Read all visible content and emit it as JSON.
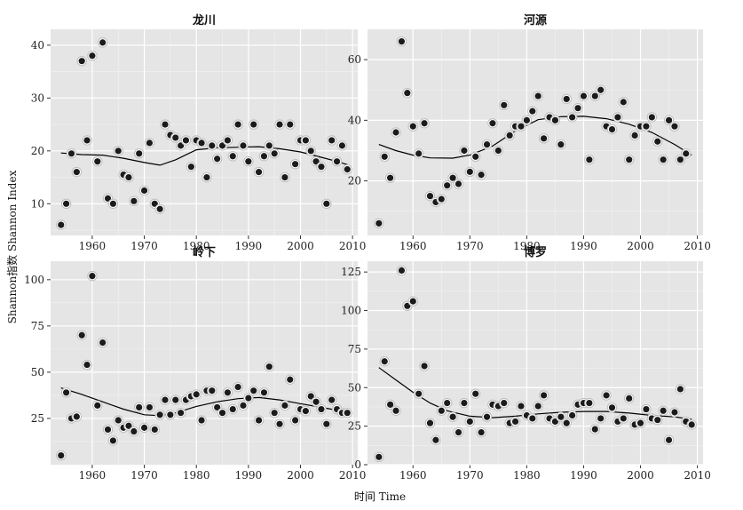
{
  "chart_data": {
    "type": "scatter",
    "xlabel": "时间 Time",
    "ylabel": "Shannon指数 Shannon Index",
    "xlim": [
      1952,
      2011
    ],
    "x_ticks": [
      1960,
      1970,
      1980,
      1990,
      2000,
      2010
    ],
    "grid": true,
    "panels": [
      {
        "name": "龙川",
        "ylim": [
          4,
          43
        ],
        "y_ticks": [
          10,
          20,
          30,
          40
        ],
        "points": [
          [
            1954,
            6
          ],
          [
            1955,
            10
          ],
          [
            1956,
            19.5
          ],
          [
            1957,
            16
          ],
          [
            1958,
            37
          ],
          [
            1959,
            22
          ],
          [
            1960,
            38
          ],
          [
            1961,
            18
          ],
          [
            1962,
            40.5
          ],
          [
            1963,
            11
          ],
          [
            1964,
            10
          ],
          [
            1965,
            20
          ],
          [
            1966,
            15.5
          ],
          [
            1967,
            15
          ],
          [
            1968,
            10.5
          ],
          [
            1969,
            19.5
          ],
          [
            1970,
            12.5
          ],
          [
            1971,
            21.5
          ],
          [
            1972,
            10
          ],
          [
            1973,
            9
          ],
          [
            1974,
            25
          ],
          [
            1975,
            23
          ],
          [
            1976,
            22.5
          ],
          [
            1977,
            21
          ],
          [
            1978,
            22
          ],
          [
            1979,
            17
          ],
          [
            1980,
            22
          ],
          [
            1981,
            21.5
          ],
          [
            1982,
            15
          ],
          [
            1983,
            21
          ],
          [
            1984,
            18.5
          ],
          [
            1985,
            21
          ],
          [
            1986,
            22
          ],
          [
            1987,
            19
          ],
          [
            1988,
            25
          ],
          [
            1989,
            21
          ],
          [
            1990,
            18
          ],
          [
            1991,
            25
          ],
          [
            1992,
            16
          ],
          [
            1993,
            19
          ],
          [
            1994,
            21
          ],
          [
            1995,
            19.5
          ],
          [
            1996,
            25
          ],
          [
            1997,
            15
          ],
          [
            1998,
            25
          ],
          [
            1999,
            17.5
          ],
          [
            2000,
            22
          ],
          [
            2001,
            22
          ],
          [
            2002,
            20
          ],
          [
            2003,
            18
          ],
          [
            2004,
            17
          ],
          [
            2005,
            10
          ],
          [
            2006,
            22
          ],
          [
            2007,
            18
          ],
          [
            2008,
            21
          ],
          [
            2009,
            16.5
          ]
        ],
        "smooth": [
          [
            1954,
            19.6
          ],
          [
            1958,
            19.3
          ],
          [
            1962,
            19.2
          ],
          [
            1966,
            18.6
          ],
          [
            1970,
            17.8
          ],
          [
            1973,
            17.3
          ],
          [
            1976,
            18.3
          ],
          [
            1980,
            20.2
          ],
          [
            1984,
            20.6
          ],
          [
            1988,
            20.7
          ],
          [
            1992,
            20.8
          ],
          [
            1996,
            20.4
          ],
          [
            2000,
            19.8
          ],
          [
            2004,
            18.8
          ],
          [
            2007,
            18.0
          ],
          [
            2009,
            17.4
          ]
        ]
      },
      {
        "name": "河源",
        "ylim": [
          2,
          70
        ],
        "y_ticks": [
          20,
          40,
          60
        ],
        "points": [
          [
            1954,
            6
          ],
          [
            1955,
            28
          ],
          [
            1956,
            21
          ],
          [
            1957,
            36
          ],
          [
            1958,
            66
          ],
          [
            1959,
            49
          ],
          [
            1960,
            38
          ],
          [
            1961,
            29
          ],
          [
            1962,
            39
          ],
          [
            1963,
            15
          ],
          [
            1964,
            13
          ],
          [
            1965,
            14
          ],
          [
            1966,
            18.5
          ],
          [
            1967,
            21
          ],
          [
            1968,
            19
          ],
          [
            1969,
            30
          ],
          [
            1970,
            23
          ],
          [
            1971,
            28
          ],
          [
            1972,
            22
          ],
          [
            1973,
            32
          ],
          [
            1974,
            39
          ],
          [
            1975,
            30
          ],
          [
            1976,
            45
          ],
          [
            1977,
            35
          ],
          [
            1978,
            38
          ],
          [
            1979,
            38
          ],
          [
            1980,
            40
          ],
          [
            1981,
            43
          ],
          [
            1982,
            48
          ],
          [
            1983,
            34
          ],
          [
            1984,
            41
          ],
          [
            1985,
            40
          ],
          [
            1986,
            32
          ],
          [
            1987,
            47
          ],
          [
            1988,
            41
          ],
          [
            1989,
            44
          ],
          [
            1990,
            48
          ],
          [
            1991,
            27
          ],
          [
            1992,
            48
          ],
          [
            1993,
            50
          ],
          [
            1994,
            38
          ],
          [
            1995,
            37
          ],
          [
            1996,
            41
          ],
          [
            1997,
            46
          ],
          [
            1998,
            27
          ],
          [
            1999,
            35
          ],
          [
            2000,
            38
          ],
          [
            2001,
            38
          ],
          [
            2002,
            41
          ],
          [
            2003,
            33
          ],
          [
            2004,
            27
          ],
          [
            2005,
            40
          ],
          [
            2006,
            38
          ],
          [
            2007,
            27
          ],
          [
            2008,
            29
          ]
        ],
        "smooth": [
          [
            1954,
            32
          ],
          [
            1957,
            30
          ],
          [
            1960,
            28.5
          ],
          [
            1963,
            27.6
          ],
          [
            1967,
            27.5
          ],
          [
            1970,
            28.5
          ],
          [
            1974,
            31.5
          ],
          [
            1978,
            36.5
          ],
          [
            1982,
            40.2
          ],
          [
            1986,
            41.2
          ],
          [
            1990,
            41.3
          ],
          [
            1994,
            40.5
          ],
          [
            1998,
            38.7
          ],
          [
            2002,
            36
          ],
          [
            2006,
            32
          ],
          [
            2009,
            28.5
          ]
        ]
      },
      {
        "name": "岭下",
        "ylim": [
          0,
          110
        ],
        "y_ticks": [
          25,
          50,
          75,
          100
        ],
        "points": [
          [
            1954,
            5
          ],
          [
            1955,
            39
          ],
          [
            1956,
            25
          ],
          [
            1957,
            26
          ],
          [
            1958,
            70
          ],
          [
            1959,
            54
          ],
          [
            1960,
            102
          ],
          [
            1961,
            32
          ],
          [
            1962,
            66
          ],
          [
            1963,
            19
          ],
          [
            1964,
            13
          ],
          [
            1965,
            24
          ],
          [
            1966,
            20
          ],
          [
            1967,
            21
          ],
          [
            1968,
            18
          ],
          [
            1969,
            31
          ],
          [
            1970,
            20
          ],
          [
            1971,
            31
          ],
          [
            1972,
            19
          ],
          [
            1973,
            27
          ],
          [
            1974,
            35
          ],
          [
            1975,
            27
          ],
          [
            1976,
            35
          ],
          [
            1977,
            28
          ],
          [
            1978,
            35
          ],
          [
            1979,
            37
          ],
          [
            1980,
            38
          ],
          [
            1981,
            24
          ],
          [
            1982,
            40
          ],
          [
            1983,
            40
          ],
          [
            1984,
            31
          ],
          [
            1985,
            28
          ],
          [
            1986,
            39
          ],
          [
            1987,
            30
          ],
          [
            1988,
            42
          ],
          [
            1989,
            32
          ],
          [
            1990,
            36
          ],
          [
            1991,
            40
          ],
          [
            1992,
            24
          ],
          [
            1993,
            39
          ],
          [
            1994,
            53
          ],
          [
            1995,
            28
          ],
          [
            1996,
            22
          ],
          [
            1997,
            32
          ],
          [
            1998,
            46
          ],
          [
            1999,
            24
          ],
          [
            2000,
            30
          ],
          [
            2001,
            29
          ],
          [
            2002,
            37
          ],
          [
            2003,
            34
          ],
          [
            2004,
            30
          ],
          [
            2005,
            22
          ],
          [
            2006,
            35
          ],
          [
            2007,
            30
          ],
          [
            2008,
            28
          ],
          [
            2009,
            28
          ]
        ],
        "smooth": [
          [
            1954,
            41.5
          ],
          [
            1958,
            38
          ],
          [
            1962,
            34
          ],
          [
            1966,
            30
          ],
          [
            1970,
            27
          ],
          [
            1973,
            26.5
          ],
          [
            1976,
            28
          ],
          [
            1980,
            31.5
          ],
          [
            1984,
            34
          ],
          [
            1988,
            35.7
          ],
          [
            1992,
            36.3
          ],
          [
            1996,
            35
          ],
          [
            2000,
            33
          ],
          [
            2004,
            31
          ],
          [
            2007,
            29.5
          ],
          [
            2009,
            28.5
          ]
        ]
      },
      {
        "name": "博罗",
        "ylim": [
          0,
          132
        ],
        "y_ticks": [
          0,
          25,
          50,
          75,
          100,
          125
        ],
        "points": [
          [
            1954,
            5
          ],
          [
            1955,
            67
          ],
          [
            1956,
            39
          ],
          [
            1957,
            35
          ],
          [
            1958,
            126
          ],
          [
            1959,
            103
          ],
          [
            1960,
            106
          ],
          [
            1961,
            46
          ],
          [
            1962,
            64
          ],
          [
            1963,
            27
          ],
          [
            1964,
            16
          ],
          [
            1965,
            35
          ],
          [
            1966,
            40
          ],
          [
            1967,
            31
          ],
          [
            1968,
            21
          ],
          [
            1969,
            40
          ],
          [
            1970,
            28
          ],
          [
            1971,
            46
          ],
          [
            1972,
            21
          ],
          [
            1973,
            31
          ],
          [
            1974,
            39
          ],
          [
            1975,
            38
          ],
          [
            1976,
            40
          ],
          [
            1977,
            27
          ],
          [
            1978,
            28
          ],
          [
            1979,
            38
          ],
          [
            1980,
            32
          ],
          [
            1981,
            30
          ],
          [
            1982,
            38
          ],
          [
            1983,
            45
          ],
          [
            1984,
            30
          ],
          [
            1985,
            28
          ],
          [
            1986,
            31
          ],
          [
            1987,
            27
          ],
          [
            1988,
            32
          ],
          [
            1989,
            39
          ],
          [
            1990,
            40
          ],
          [
            1991,
            40
          ],
          [
            1992,
            23
          ],
          [
            1993,
            30
          ],
          [
            1994,
            45
          ],
          [
            1995,
            37
          ],
          [
            1996,
            28
          ],
          [
            1997,
            30
          ],
          [
            1998,
            43
          ],
          [
            1999,
            26
          ],
          [
            2000,
            27
          ],
          [
            2001,
            36
          ],
          [
            2002,
            30
          ],
          [
            2003,
            29
          ],
          [
            2004,
            35
          ],
          [
            2005,
            16
          ],
          [
            2006,
            34
          ],
          [
            2007,
            49
          ],
          [
            2008,
            28
          ],
          [
            2009,
            26
          ]
        ],
        "smooth": [
          [
            1954,
            63
          ],
          [
            1957,
            55
          ],
          [
            1960,
            47
          ],
          [
            1963,
            40
          ],
          [
            1966,
            35
          ],
          [
            1970,
            31.5
          ],
          [
            1974,
            30.5
          ],
          [
            1978,
            31.5
          ],
          [
            1982,
            33
          ],
          [
            1986,
            34
          ],
          [
            1990,
            34.5
          ],
          [
            1994,
            34.5
          ],
          [
            1998,
            33.5
          ],
          [
            2002,
            32
          ],
          [
            2006,
            31
          ],
          [
            2009,
            29.5
          ]
        ]
      }
    ]
  }
}
